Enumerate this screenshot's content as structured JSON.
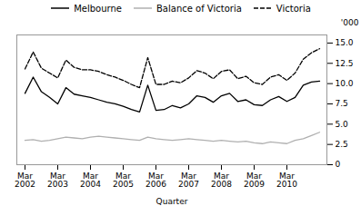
{
  "chart_data": {
    "type": "line",
    "xlabel": "Quarter",
    "ylabel": "'000",
    "categories": [
      "Mar\n2002",
      null,
      null,
      null,
      "Mar\n2003",
      null,
      null,
      null,
      "Mar\n2004",
      null,
      null,
      null,
      "Mar\n2005",
      null,
      null,
      null,
      "Mar\n2006",
      null,
      null,
      null,
      "Mar\n2007",
      null,
      null,
      null,
      "Mar\n2008",
      null,
      null,
      null,
      "Mar\n2009",
      null,
      null,
      null,
      "Mar\n2010",
      null,
      null,
      null,
      null
    ],
    "series": [
      {
        "name": "Melbourne",
        "color": "#000000",
        "line_style": "solid",
        "values": [
          8.8,
          10.8,
          9.0,
          8.3,
          7.5,
          9.5,
          8.7,
          8.5,
          8.3,
          8.0,
          7.7,
          7.5,
          7.2,
          6.8,
          6.5,
          9.8,
          6.7,
          6.8,
          7.3,
          7.0,
          7.5,
          8.5,
          8.3,
          7.7,
          8.5,
          8.8,
          7.8,
          8.0,
          7.4,
          7.3,
          8.0,
          8.4,
          7.8,
          8.3,
          9.8,
          10.2,
          10.3
        ]
      },
      {
        "name": "Balance of Victoria",
        "color": "#b0b0b0",
        "line_style": "solid",
        "values": [
          3.0,
          3.1,
          2.9,
          3.0,
          3.2,
          3.4,
          3.3,
          3.2,
          3.4,
          3.5,
          3.4,
          3.3,
          3.2,
          3.1,
          3.0,
          3.4,
          3.2,
          3.1,
          3.0,
          3.1,
          3.2,
          3.1,
          3.0,
          2.9,
          3.0,
          2.9,
          2.8,
          2.9,
          2.7,
          2.6,
          2.8,
          2.7,
          2.6,
          3.0,
          3.2,
          3.6,
          4.0
        ]
      },
      {
        "name": "Victoria",
        "color": "#000000",
        "line_style": "dashed",
        "values": [
          11.8,
          13.9,
          11.9,
          11.3,
          10.7,
          12.9,
          12.0,
          11.7,
          11.7,
          11.5,
          11.1,
          10.8,
          10.4,
          9.9,
          9.5,
          13.2,
          9.9,
          9.9,
          10.3,
          10.1,
          10.7,
          11.6,
          11.3,
          10.6,
          11.5,
          11.7,
          10.6,
          10.9,
          10.1,
          9.9,
          10.8,
          11.1,
          10.4,
          11.3,
          13.0,
          13.8,
          14.3
        ]
      }
    ],
    "ylim": [
      0,
      16
    ],
    "yticks": [
      0,
      2.5,
      {
        "value": 5,
        "label": "5.0"
      },
      7.5,
      {
        "value": 10,
        "label": "10.0"
      },
      12.5,
      {
        "value": 15,
        "label": "15.0"
      }
    ],
    "legend": "top"
  }
}
